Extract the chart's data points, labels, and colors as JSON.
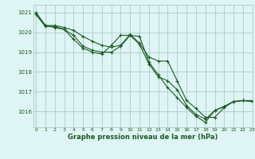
{
  "bg_color": "#dff4f4",
  "grid_color": "#aacccc",
  "line_color": "#1a5c20",
  "title": "Graphe pression niveau de la mer (hPa)",
  "xlim": [
    -0.3,
    23
  ],
  "ylim": [
    1015.2,
    1021.4
  ],
  "yticks": [
    1016,
    1017,
    1018,
    1019,
    1020,
    1021
  ],
  "xticks": [
    0,
    1,
    2,
    3,
    4,
    5,
    6,
    7,
    8,
    9,
    10,
    11,
    12,
    13,
    14,
    15,
    16,
    17,
    18,
    19,
    20,
    21,
    22,
    23
  ],
  "series": [
    [
      1021.0,
      1020.35,
      1020.35,
      1020.25,
      1020.1,
      1019.8,
      1019.55,
      1019.35,
      1019.25,
      1019.35,
      1019.9,
      1019.45,
      1018.75,
      1018.55,
      1018.55,
      1017.55,
      1016.55,
      1016.15,
      1015.7,
      1015.7,
      1016.2,
      1016.5,
      1016.55,
      1016.55
    ],
    [
      1020.9,
      1020.3,
      1020.3,
      1020.15,
      1019.85,
      1019.3,
      1019.1,
      1019.0,
      1019.0,
      1019.3,
      1019.85,
      1019.4,
      1018.4,
      1017.75,
      1017.55,
      1017.1,
      1016.3,
      1015.85,
      1015.6,
      1016.05,
      1016.25,
      1016.5,
      1016.55,
      1016.5
    ],
    [
      1021.0,
      1020.35,
      1020.25,
      1020.15,
      1019.65,
      1019.2,
      1019.0,
      1018.9,
      1019.35,
      1019.85,
      1019.85,
      1019.8,
      1018.5,
      1017.85,
      1017.2,
      1016.7,
      1016.2,
      1015.75,
      1015.45,
      1016.05,
      1016.25,
      1016.5,
      1016.55,
      1016.5
    ]
  ]
}
